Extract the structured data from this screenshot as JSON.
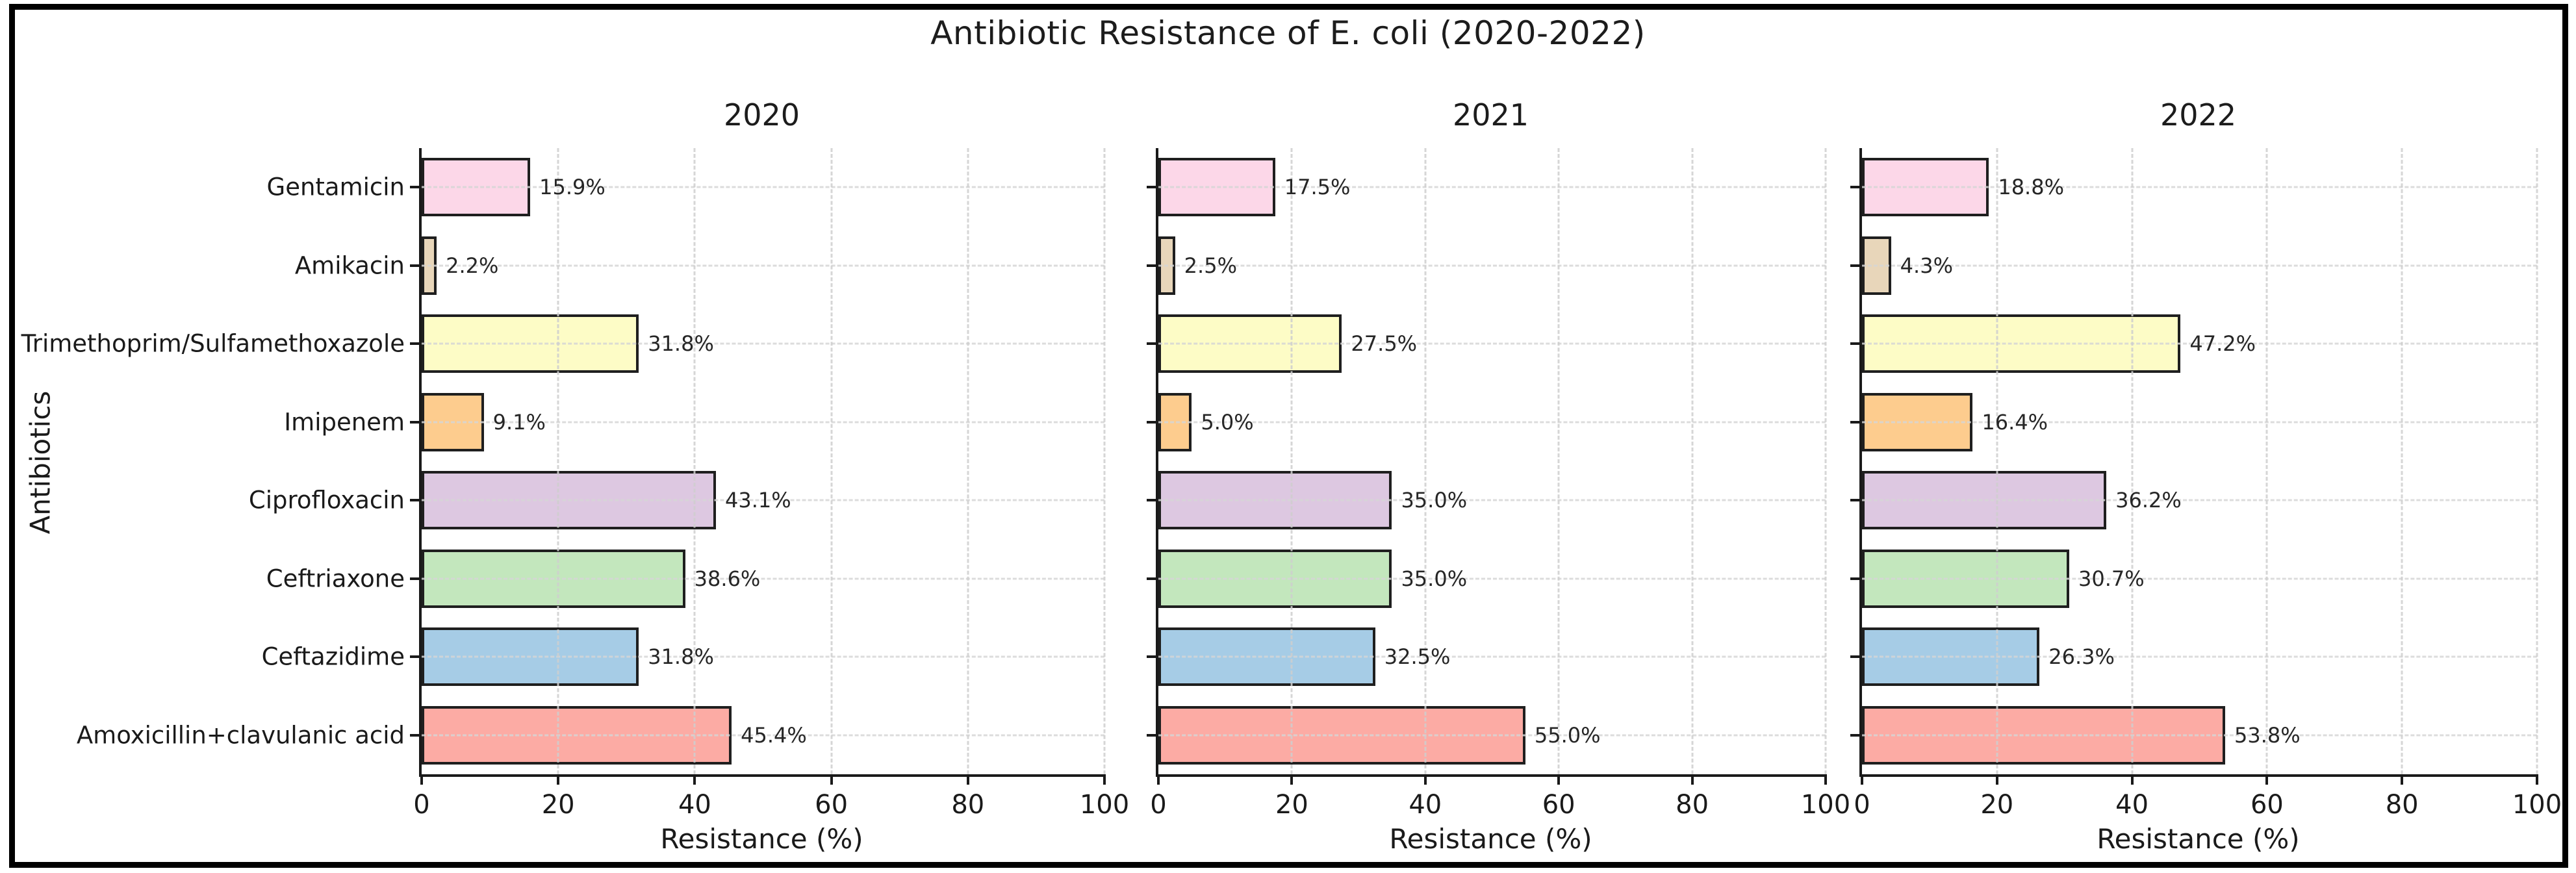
{
  "figure": {
    "title": "Antibiotic Resistance of E. coli (2020-2022)"
  },
  "chart_data": {
    "type": "bar",
    "orientation": "horizontal",
    "title": "Antibiotic Resistance of E. coli (2020-2022)",
    "xlabel": "Resistance (%)",
    "ylabel": "Antibiotics",
    "xlim": [
      0,
      100
    ],
    "xticks": [
      0,
      20,
      40,
      60,
      80,
      100
    ],
    "grid": "dashed light-gray gridlines on both axes",
    "legend_position": "none",
    "subplot_titles": [
      "2020",
      "2021",
      "2022"
    ],
    "categories": [
      "Gentamicin",
      "Amikacin",
      "Trimethoprim/Sulfamethoxazole",
      "Imipenem",
      "Ciprofloxacin",
      "Ceftriaxone",
      "Ceftazidime",
      "Amoxicillin+clavulanic acid"
    ],
    "bar_colors": [
      "#fcd7e8",
      "#e8d6ba",
      "#fdfcc6",
      "#fdcc8e",
      "#ddc8e1",
      "#c3e7bd",
      "#a6cce6",
      "#fcaba4"
    ],
    "bar_edge_color": "#1f1f1f",
    "series": [
      {
        "name": "2020",
        "values": [
          15.9,
          2.2,
          31.8,
          9.1,
          43.1,
          38.6,
          31.8,
          45.4
        ],
        "labels": [
          "15.9%",
          "2.2%",
          "31.8%",
          "9.1%",
          "43.1%",
          "38.6%",
          "31.8%",
          "45.4%"
        ]
      },
      {
        "name": "2021",
        "values": [
          17.5,
          2.5,
          27.5,
          5.0,
          35.0,
          35.0,
          32.5,
          55.0
        ],
        "labels": [
          "17.5%",
          "2.5%",
          "27.5%",
          "5.0%",
          "35.0%",
          "35.0%",
          "32.5%",
          "55.0%"
        ]
      },
      {
        "name": "2022",
        "values": [
          18.8,
          4.3,
          47.2,
          16.4,
          36.2,
          30.7,
          26.3,
          53.8
        ],
        "labels": [
          "18.8%",
          "4.3%",
          "47.2%",
          "16.4%",
          "36.2%",
          "30.7%",
          "26.3%",
          "53.8%"
        ]
      }
    ]
  }
}
